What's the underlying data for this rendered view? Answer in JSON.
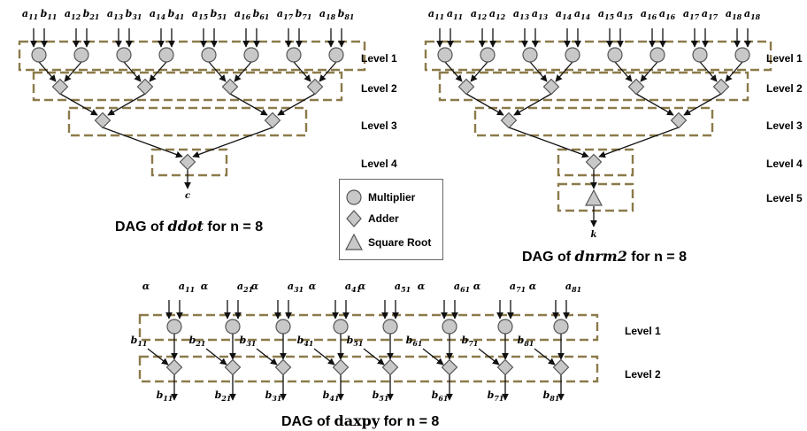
{
  "colors": {
    "node_fill": "#c8c8c8",
    "node_stroke": "#555555",
    "box_stroke": "#8b7a4a",
    "edge": "#111111"
  },
  "legend": {
    "multiplier": "Multiplier",
    "adder": "Adder",
    "sqrt": "Square Root"
  },
  "ddot": {
    "title_prefix": "DAG of ",
    "title_func": "ddot",
    "title_suffix": " for n = 8",
    "inputs": [
      "a11",
      "b11",
      "a12",
      "b21",
      "a13",
      "b31",
      "a14",
      "b41",
      "a15",
      "b51",
      "a16",
      "b61",
      "a17",
      "b71",
      "a18",
      "b81"
    ],
    "output": "c",
    "levels": [
      "Level 1",
      "Level 2",
      "Level 3",
      "Level 4"
    ]
  },
  "dnrm2": {
    "title_prefix": "DAG of ",
    "title_func": "dnrm2",
    "title_suffix": " for n = 8",
    "inputs": [
      "a11",
      "a11",
      "a12",
      "a12",
      "a13",
      "a13",
      "a14",
      "a14",
      "a15",
      "a15",
      "a16",
      "a16",
      "a17",
      "a17",
      "a18",
      "a18"
    ],
    "output": "k",
    "levels": [
      "Level 1",
      "Level 2",
      "Level 3",
      "Level 4",
      "Level 5"
    ]
  },
  "daxpy": {
    "title_prefix": "DAG of ",
    "title_func": "daxpy",
    "title_suffix": " for n = 8",
    "alpha": "α",
    "a_inputs": [
      "a11",
      "a21",
      "a31",
      "a41",
      "a51",
      "a61",
      "a71",
      "a81"
    ],
    "b_inputs": [
      "b11",
      "b21",
      "b31",
      "b41",
      "b51",
      "b61",
      "b71",
      "b81"
    ],
    "b_outputs": [
      "b11",
      "b21",
      "b31",
      "b41",
      "b51",
      "b61",
      "b71",
      "b81"
    ],
    "levels": [
      "Level 1",
      "Level 2"
    ]
  }
}
